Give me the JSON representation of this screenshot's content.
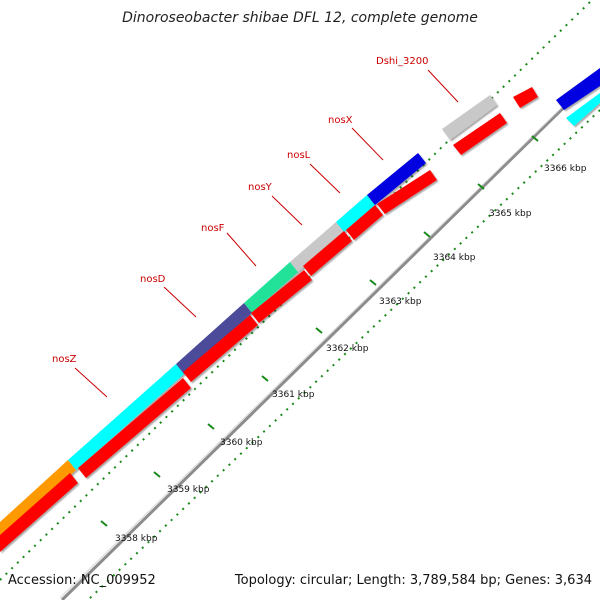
{
  "title": "Dinoroseobacter shibae DFL 12, complete genome",
  "footer": {
    "accession": "Accession: NC_009952",
    "summary": "Topology: circular; Length: 3,789,584 bp; Genes: 3,634"
  },
  "gene_labels": [
    "nosZ",
    "nosD",
    "nosF",
    "nosY",
    "nosL",
    "nosX",
    "Dshi_3200"
  ],
  "tick_labels": [
    "3358 kbp",
    "3359 kbp",
    "3360 kbp",
    "3361 kbp",
    "3362 kbp",
    "3363 kbp",
    "3364 kbp",
    "3365 kbp",
    "3366 kbp"
  ],
  "colors": {
    "cds_red": "#ff0000",
    "nosZ": "#00ffff",
    "nosD": "#4b4b9a",
    "nosF": "#22e29a",
    "nosY": "#c8c8c8",
    "nosL": "#00ffff",
    "nosX": "#0000e0",
    "Dshi_3200": "#c8c8c8",
    "orange_gene": "#ff9900",
    "backbone": "#8c8c8c",
    "tick_green": "#1a8a1a"
  }
}
